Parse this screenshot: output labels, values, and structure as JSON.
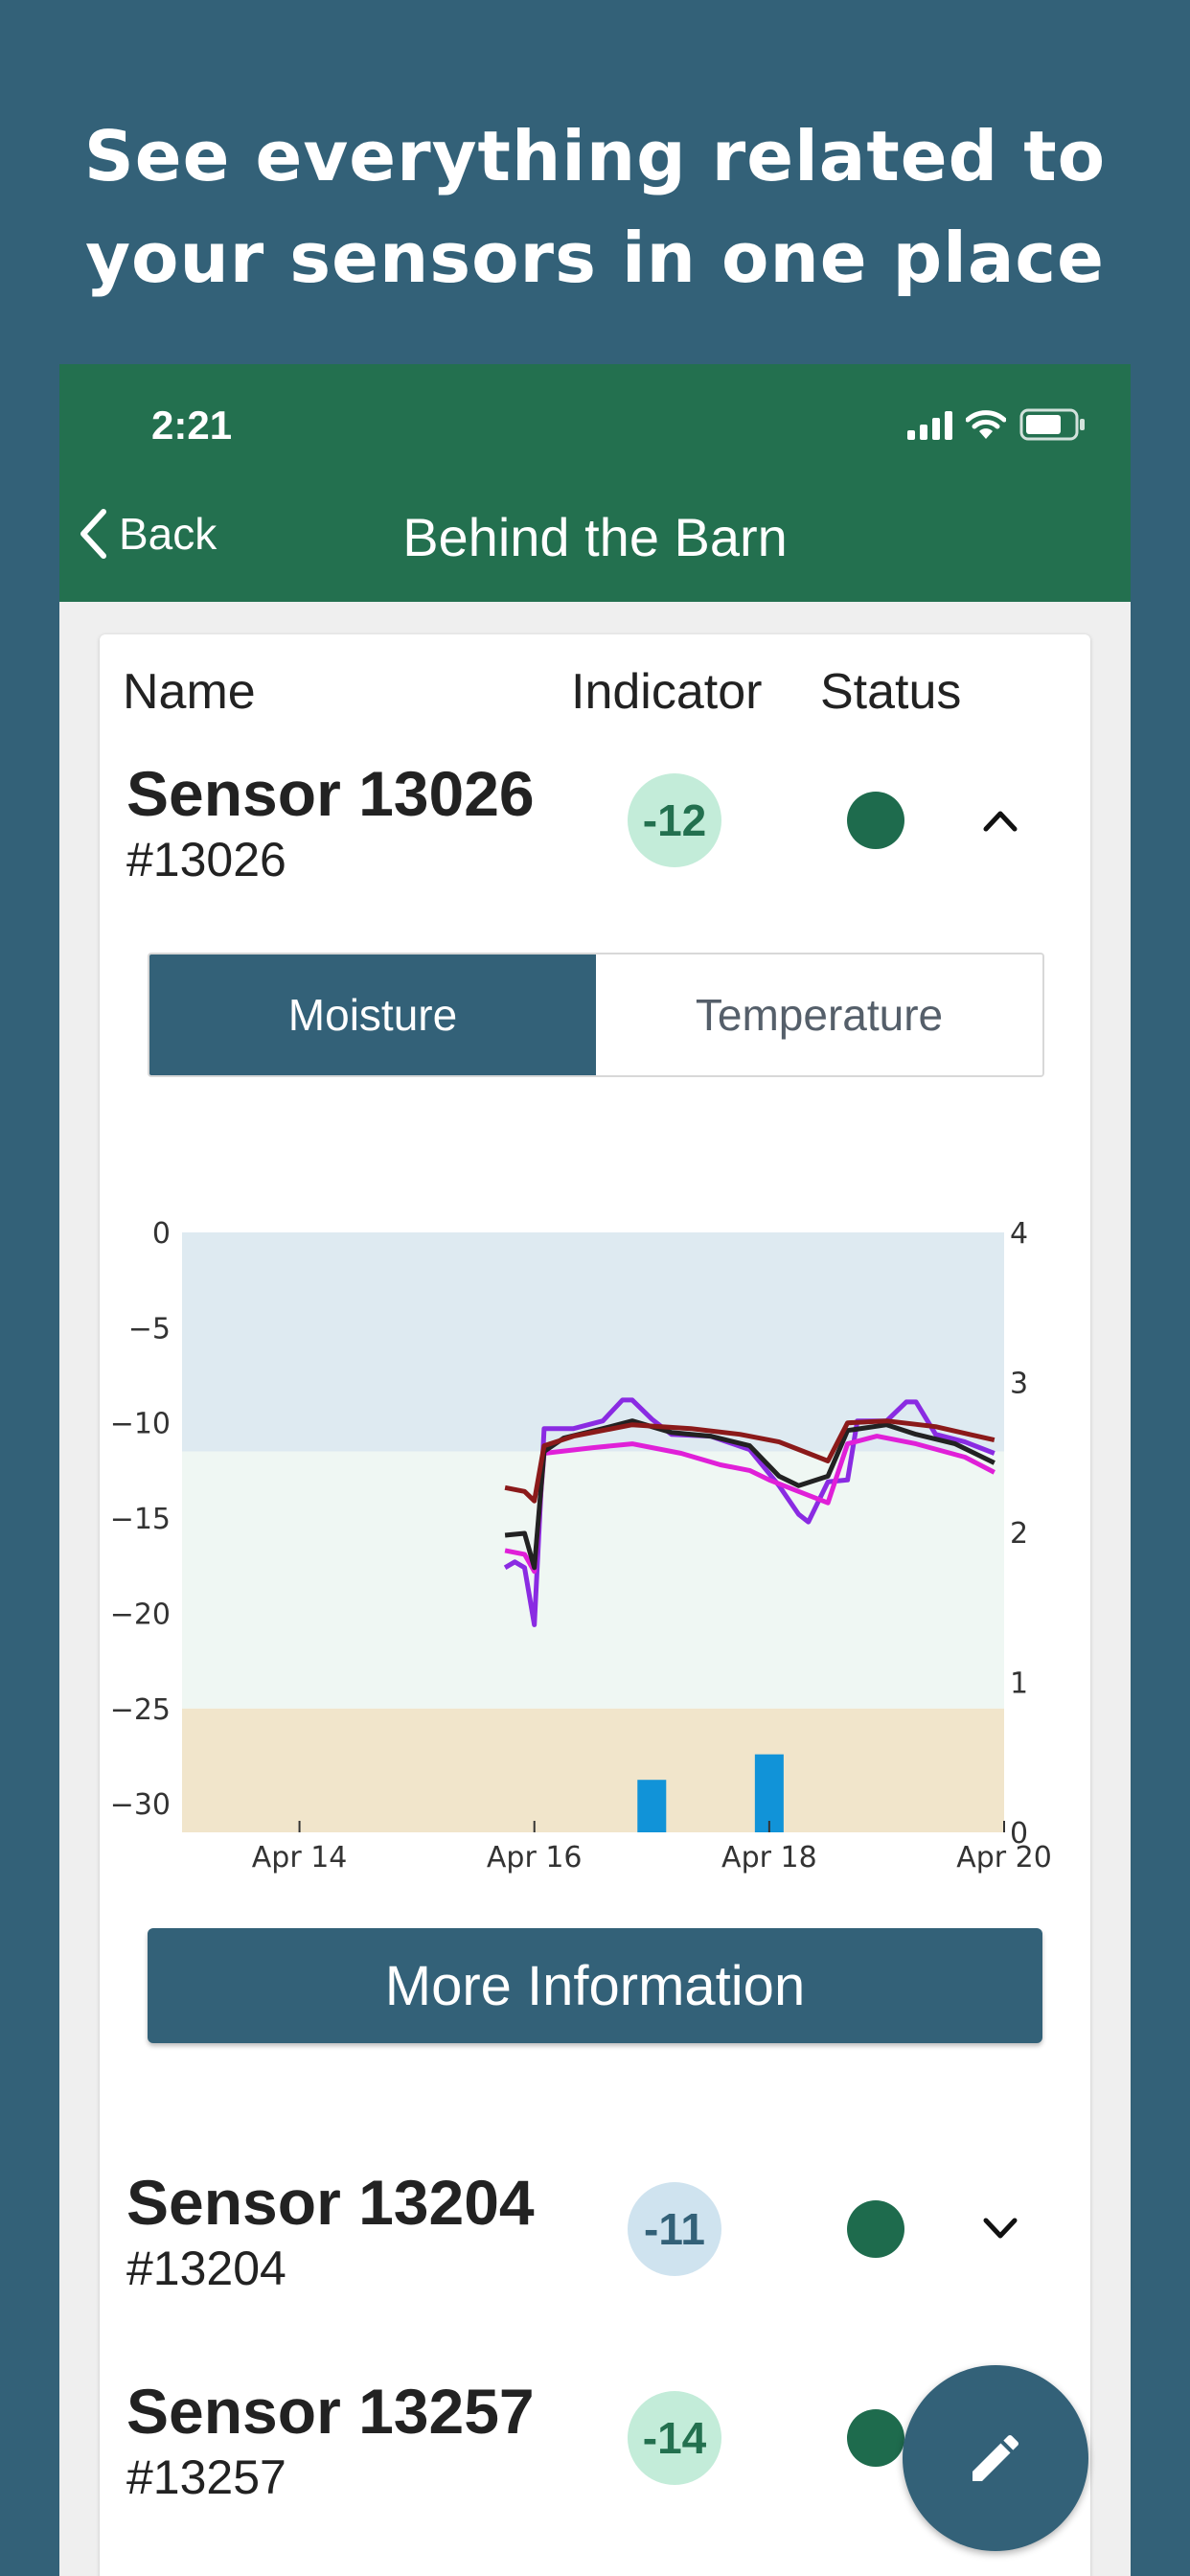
{
  "headline": {
    "line1": "See everything related to",
    "line2": "your sensors in one place"
  },
  "status_bar": {
    "time": "2:21"
  },
  "nav": {
    "back_label": "Back",
    "title": "Behind the Barn"
  },
  "table": {
    "col_name": "Name",
    "col_indicator": "Indicator",
    "col_status": "Status"
  },
  "sensors": [
    {
      "name": "Sensor 13026",
      "id": "#13026",
      "indicator": "-12",
      "expanded": true
    },
    {
      "name": "Sensor 13204",
      "id": "#13204",
      "indicator": "-11",
      "expanded": false
    },
    {
      "name": "Sensor 13257",
      "id": "#13257",
      "indicator": "-14",
      "expanded": false
    }
  ],
  "tabs": {
    "moisture": "Moisture",
    "temperature": "Temperature"
  },
  "more_info_label": "More Information",
  "colors": {
    "brand_green": "#23704f",
    "brand_blue": "#336178",
    "badge_green_bg": "#c3ecd9",
    "badge_green_text": "#23704f",
    "badge_blue_bg": "#cfe3ef",
    "badge_blue_text": "#336178",
    "status_dot": "#1e6b4d"
  },
  "icons": [
    "chevron-left-icon",
    "chevron-up-icon",
    "chevron-down-icon",
    "signal-icon",
    "wifi-icon",
    "battery-icon",
    "pencil-icon"
  ],
  "chart_data": {
    "type": "line",
    "title": "",
    "x_ticks": [
      "Apr 14",
      "Apr 16",
      "Apr 18",
      "Apr 20"
    ],
    "xlim": [
      "Apr 13",
      "Apr 20"
    ],
    "y_left_ticks": [
      0,
      -5,
      -10,
      -15,
      -20,
      -25,
      -30
    ],
    "ylim_left": [
      -31.5,
      0
    ],
    "y_right_ticks": [
      0,
      1,
      2,
      3,
      4
    ],
    "ylim_right": [
      0,
      4
    ],
    "bands": [
      {
        "from": -11.5,
        "to": 0,
        "color": "#deeaf1"
      },
      {
        "from": -25,
        "to": -11.5,
        "color": "#eff7f3"
      },
      {
        "from": -31.5,
        "to": -25,
        "color": "#f1e5cb"
      }
    ],
    "series": [
      {
        "color": "#8a2be2",
        "points": [
          [
            "Apr 15 18:00",
            -17.6
          ],
          [
            "Apr 15 20:00",
            -17.3
          ],
          [
            "Apr 15 22:00",
            -17.6
          ],
          [
            "Apr 16 00:00",
            -20.6
          ],
          [
            "Apr 16 02:00",
            -10.3
          ],
          [
            "Apr 16 08:00",
            -10.3
          ],
          [
            "Apr 16 14:00",
            -9.9
          ],
          [
            "Apr 16 18:00",
            -8.8
          ],
          [
            "Apr 16 20:00",
            -8.8
          ],
          [
            "Apr 17 00:00",
            -9.8
          ],
          [
            "Apr 17 04:00",
            -10.6
          ],
          [
            "Apr 17 12:00",
            -10.7
          ],
          [
            "Apr 17 20:00",
            -11.4
          ],
          [
            "Apr 18 02:00",
            -13.3
          ],
          [
            "Apr 18 06:00",
            -14.8
          ],
          [
            "Apr 18 08:00",
            -15.2
          ],
          [
            "Apr 18 12:00",
            -13.1
          ],
          [
            "Apr 18 16:00",
            -13.0
          ],
          [
            "Apr 18 18:00",
            -9.9
          ],
          [
            "Apr 19 00:00",
            -9.9
          ],
          [
            "Apr 19 04:00",
            -8.9
          ],
          [
            "Apr 19 06:00",
            -8.9
          ],
          [
            "Apr 19 10:00",
            -10.6
          ],
          [
            "Apr 19 16:00",
            -11.0
          ],
          [
            "Apr 19 22:00",
            -11.6
          ]
        ]
      },
      {
        "color": "#e020d8",
        "points": [
          [
            "Apr 15 18:00",
            -16.7
          ],
          [
            "Apr 15 22:00",
            -16.9
          ],
          [
            "Apr 16 00:00",
            -17.8
          ],
          [
            "Apr 16 02:00",
            -11.6
          ],
          [
            "Apr 16 12:00",
            -11.3
          ],
          [
            "Apr 16 20:00",
            -11.1
          ],
          [
            "Apr 17 06:00",
            -11.6
          ],
          [
            "Apr 17 14:00",
            -12.2
          ],
          [
            "Apr 17 20:00",
            -12.5
          ],
          [
            "Apr 18 00:00",
            -13.0
          ],
          [
            "Apr 18 06:00",
            -13.6
          ],
          [
            "Apr 18 12:00",
            -14.2
          ],
          [
            "Apr 18 16:00",
            -11.1
          ],
          [
            "Apr 18 22:00",
            -10.7
          ],
          [
            "Apr 19 06:00",
            -11.1
          ],
          [
            "Apr 19 16:00",
            -11.8
          ],
          [
            "Apr 19 22:00",
            -12.6
          ]
        ]
      },
      {
        "color": "#222222",
        "points": [
          [
            "Apr 15 18:00",
            -15.9
          ],
          [
            "Apr 15 22:00",
            -15.8
          ],
          [
            "Apr 16 00:00",
            -17.6
          ],
          [
            "Apr 16 02:00",
            -11.5
          ],
          [
            "Apr 16 06:00",
            -10.8
          ],
          [
            "Apr 16 14:00",
            -10.3
          ],
          [
            "Apr 16 20:00",
            -9.9
          ],
          [
            "Apr 17 04:00",
            -10.5
          ],
          [
            "Apr 17 12:00",
            -10.7
          ],
          [
            "Apr 17 20:00",
            -11.2
          ],
          [
            "Apr 18 02:00",
            -12.8
          ],
          [
            "Apr 18 06:00",
            -13.3
          ],
          [
            "Apr 18 12:00",
            -12.8
          ],
          [
            "Apr 18 16:00",
            -10.4
          ],
          [
            "Apr 19 00:00",
            -10.1
          ],
          [
            "Apr 19 06:00",
            -10.6
          ],
          [
            "Apr 19 14:00",
            -11.1
          ],
          [
            "Apr 19 22:00",
            -12.1
          ]
        ]
      },
      {
        "color": "#8b1a1a",
        "points": [
          [
            "Apr 15 18:00",
            -13.4
          ],
          [
            "Apr 15 22:00",
            -13.6
          ],
          [
            "Apr 16 00:00",
            -14.1
          ],
          [
            "Apr 16 02:00",
            -11.2
          ],
          [
            "Apr 16 08:00",
            -10.7
          ],
          [
            "Apr 16 20:00",
            -10.1
          ],
          [
            "Apr 17 08:00",
            -10.3
          ],
          [
            "Apr 17 18:00",
            -10.6
          ],
          [
            "Apr 18 02:00",
            -11.0
          ],
          [
            "Apr 18 08:00",
            -11.6
          ],
          [
            "Apr 18 12:00",
            -12.0
          ],
          [
            "Apr 18 16:00",
            -10.0
          ],
          [
            "Apr 19 00:00",
            -9.9
          ],
          [
            "Apr 19 10:00",
            -10.2
          ],
          [
            "Apr 19 22:00",
            -10.9
          ]
        ]
      }
    ],
    "bar_series": {
      "axis": "right",
      "color": "#1193d8",
      "bars": [
        {
          "x": "Apr 17",
          "value": 0.35
        },
        {
          "x": "Apr 18",
          "value": 0.52
        }
      ]
    }
  }
}
